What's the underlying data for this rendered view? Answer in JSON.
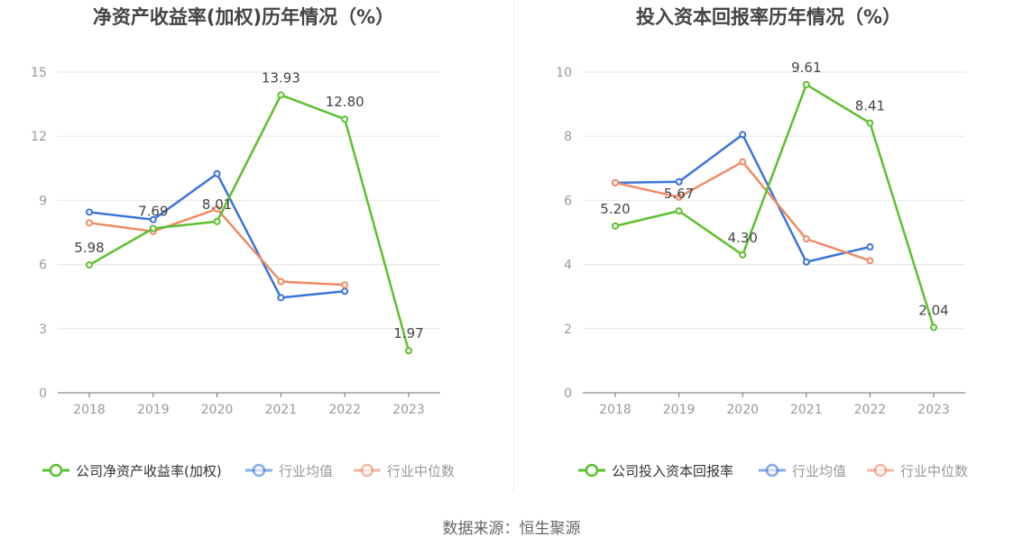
{
  "charts": [
    {
      "title": "净资产收益率(加权)历年情况（%）",
      "chart_data": {
        "type": "line",
        "title": "净资产收益率(加权)历年情况（%）",
        "categories": [
          "2018",
          "2019",
          "2020",
          "2021",
          "2022",
          "2023"
        ],
        "ylim": [
          0,
          15
        ],
        "yticks": [
          0,
          3,
          6,
          9,
          12,
          15
        ],
        "grid": true,
        "legend_position": "bottom",
        "series": [
          {
            "name": "公司净资产收益率(加权)",
            "values": [
              5.98,
              7.69,
              8.01,
              13.93,
              12.8,
              1.97
            ],
            "color": "#5cc02d",
            "labels": [
              "5.98",
              "7.69",
              "8.01",
              "13.93",
              "12.80",
              "1.97"
            ]
          },
          {
            "name": "行业均值",
            "values": [
              8.45,
              8.1,
              10.25,
              4.45,
              4.75,
              null
            ],
            "color": "#3a74d9"
          },
          {
            "name": "行业中位数",
            "values": [
              7.95,
              7.55,
              8.6,
              5.2,
              5.05,
              null
            ],
            "color": "#ef8a62"
          }
        ]
      }
    },
    {
      "title": "投入资本回报率历年情况（%）",
      "chart_data": {
        "type": "line",
        "title": "投入资本回报率历年情况（%）",
        "categories": [
          "2018",
          "2019",
          "2020",
          "2021",
          "2022",
          "2023"
        ],
        "ylim": [
          0,
          10
        ],
        "yticks": [
          0,
          2,
          4,
          6,
          8,
          10
        ],
        "grid": true,
        "legend_position": "bottom",
        "series": [
          {
            "name": "公司投入资本回报率",
            "values": [
              5.2,
              5.67,
              4.3,
              9.61,
              8.41,
              2.04
            ],
            "color": "#5cc02d",
            "labels": [
              "5.20",
              "5.67",
              "4.30",
              "9.61",
              "8.41",
              "2.04"
            ]
          },
          {
            "name": "行业均值",
            "values": [
              6.55,
              6.58,
              8.05,
              4.08,
              4.55,
              null
            ],
            "color": "#3a74d9"
          },
          {
            "name": "行业中位数",
            "values": [
              6.55,
              6.1,
              7.2,
              4.8,
              4.12,
              null
            ],
            "color": "#ef8a62"
          }
        ]
      }
    }
  ],
  "footer": {
    "source": "数据来源：恒生聚源"
  }
}
